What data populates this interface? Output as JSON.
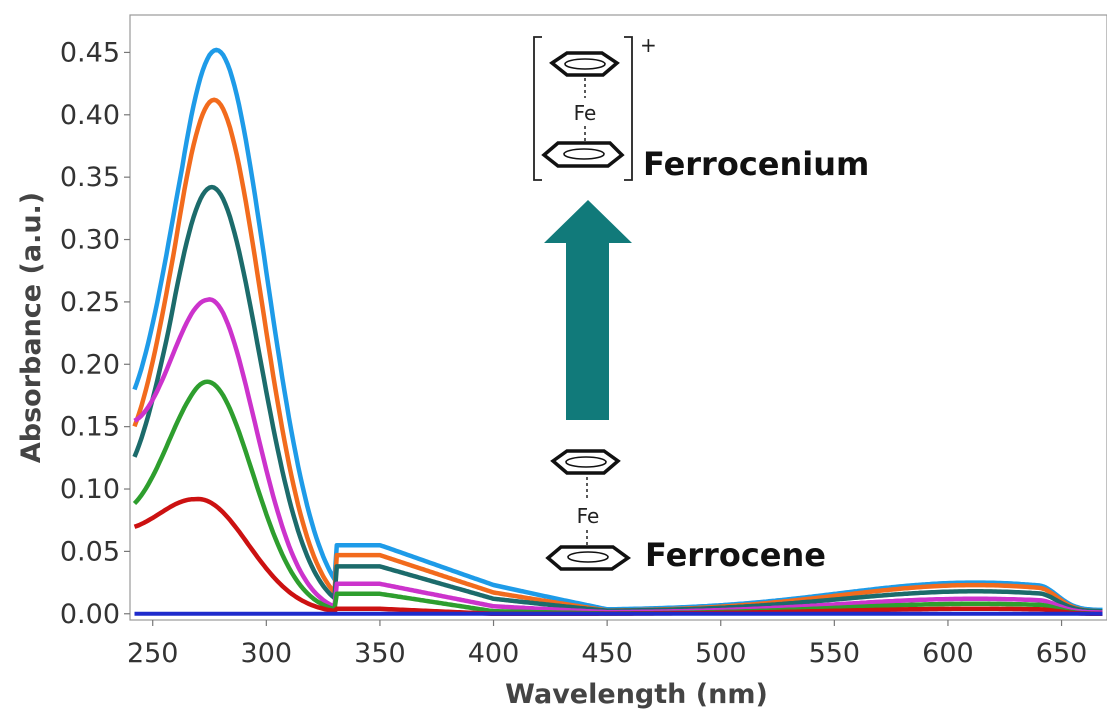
{
  "chart_data": {
    "type": "line",
    "xlabel": "Wavelength (nm)",
    "ylabel": "Absorbance (a.u.)",
    "xlim": [
      240,
      670
    ],
    "ylim": [
      -0.005,
      0.48
    ],
    "x_ticks": [
      250,
      300,
      350,
      400,
      450,
      500,
      550,
      600,
      650
    ],
    "y_ticks": [
      "0.00",
      "0.05",
      "0.10",
      "0.15",
      "0.20",
      "0.25",
      "0.30",
      "0.35",
      "0.40",
      "0.45"
    ],
    "grid": false,
    "series": [
      {
        "color": "#1E9BE8",
        "peak": 0.452,
        "peak_x": 278,
        "width": 22,
        "start": 0.085,
        "tail350": 0.055,
        "tail400": 0.023,
        "tail450": 0.003,
        "band": 0.022
      },
      {
        "color": "#F26B1D",
        "peak": 0.412,
        "peak_x": 277,
        "width": 21,
        "start": 0.068,
        "tail350": 0.047,
        "tail400": 0.017,
        "tail450": 0.002,
        "band": 0.021
      },
      {
        "color": "#1C6B6B",
        "peak": 0.342,
        "peak_x": 276,
        "width": 21,
        "start": 0.052,
        "tail350": 0.038,
        "tail400": 0.012,
        "tail450": 0.002,
        "band": 0.016
      },
      {
        "color": "#CC33CC",
        "peak": 0.252,
        "peak_x": 275,
        "width": 20,
        "start": 0.103,
        "tail350": 0.024,
        "tail400": 0.006,
        "tail450": 0.001,
        "band": 0.011
      },
      {
        "color": "#2E9E2E",
        "peak": 0.186,
        "peak_x": 274,
        "width": 20,
        "start": 0.047,
        "tail350": 0.016,
        "tail400": 0.002,
        "tail450": 0.0,
        "band": 0.008
      },
      {
        "color": "#CC1111",
        "peak": 0.092,
        "peak_x": 270,
        "width": 22,
        "start": 0.037,
        "tail350": 0.004,
        "tail400": 0.0,
        "tail450": 0.0,
        "band": 0.004
      },
      {
        "color": "#1E2BCC",
        "peak": 0.0,
        "peak_x": 270,
        "width": 20,
        "start": 0.0,
        "tail350": 0.0,
        "tail400": 0.0,
        "tail450": 0.0,
        "band": 0.0
      }
    ],
    "annotations": [
      {
        "label": "Ferrocenium"
      },
      {
        "label": "Ferrocene"
      },
      {
        "label": "Fe"
      },
      {
        "label": "+"
      }
    ],
    "arrow_color": "#117A7A"
  }
}
